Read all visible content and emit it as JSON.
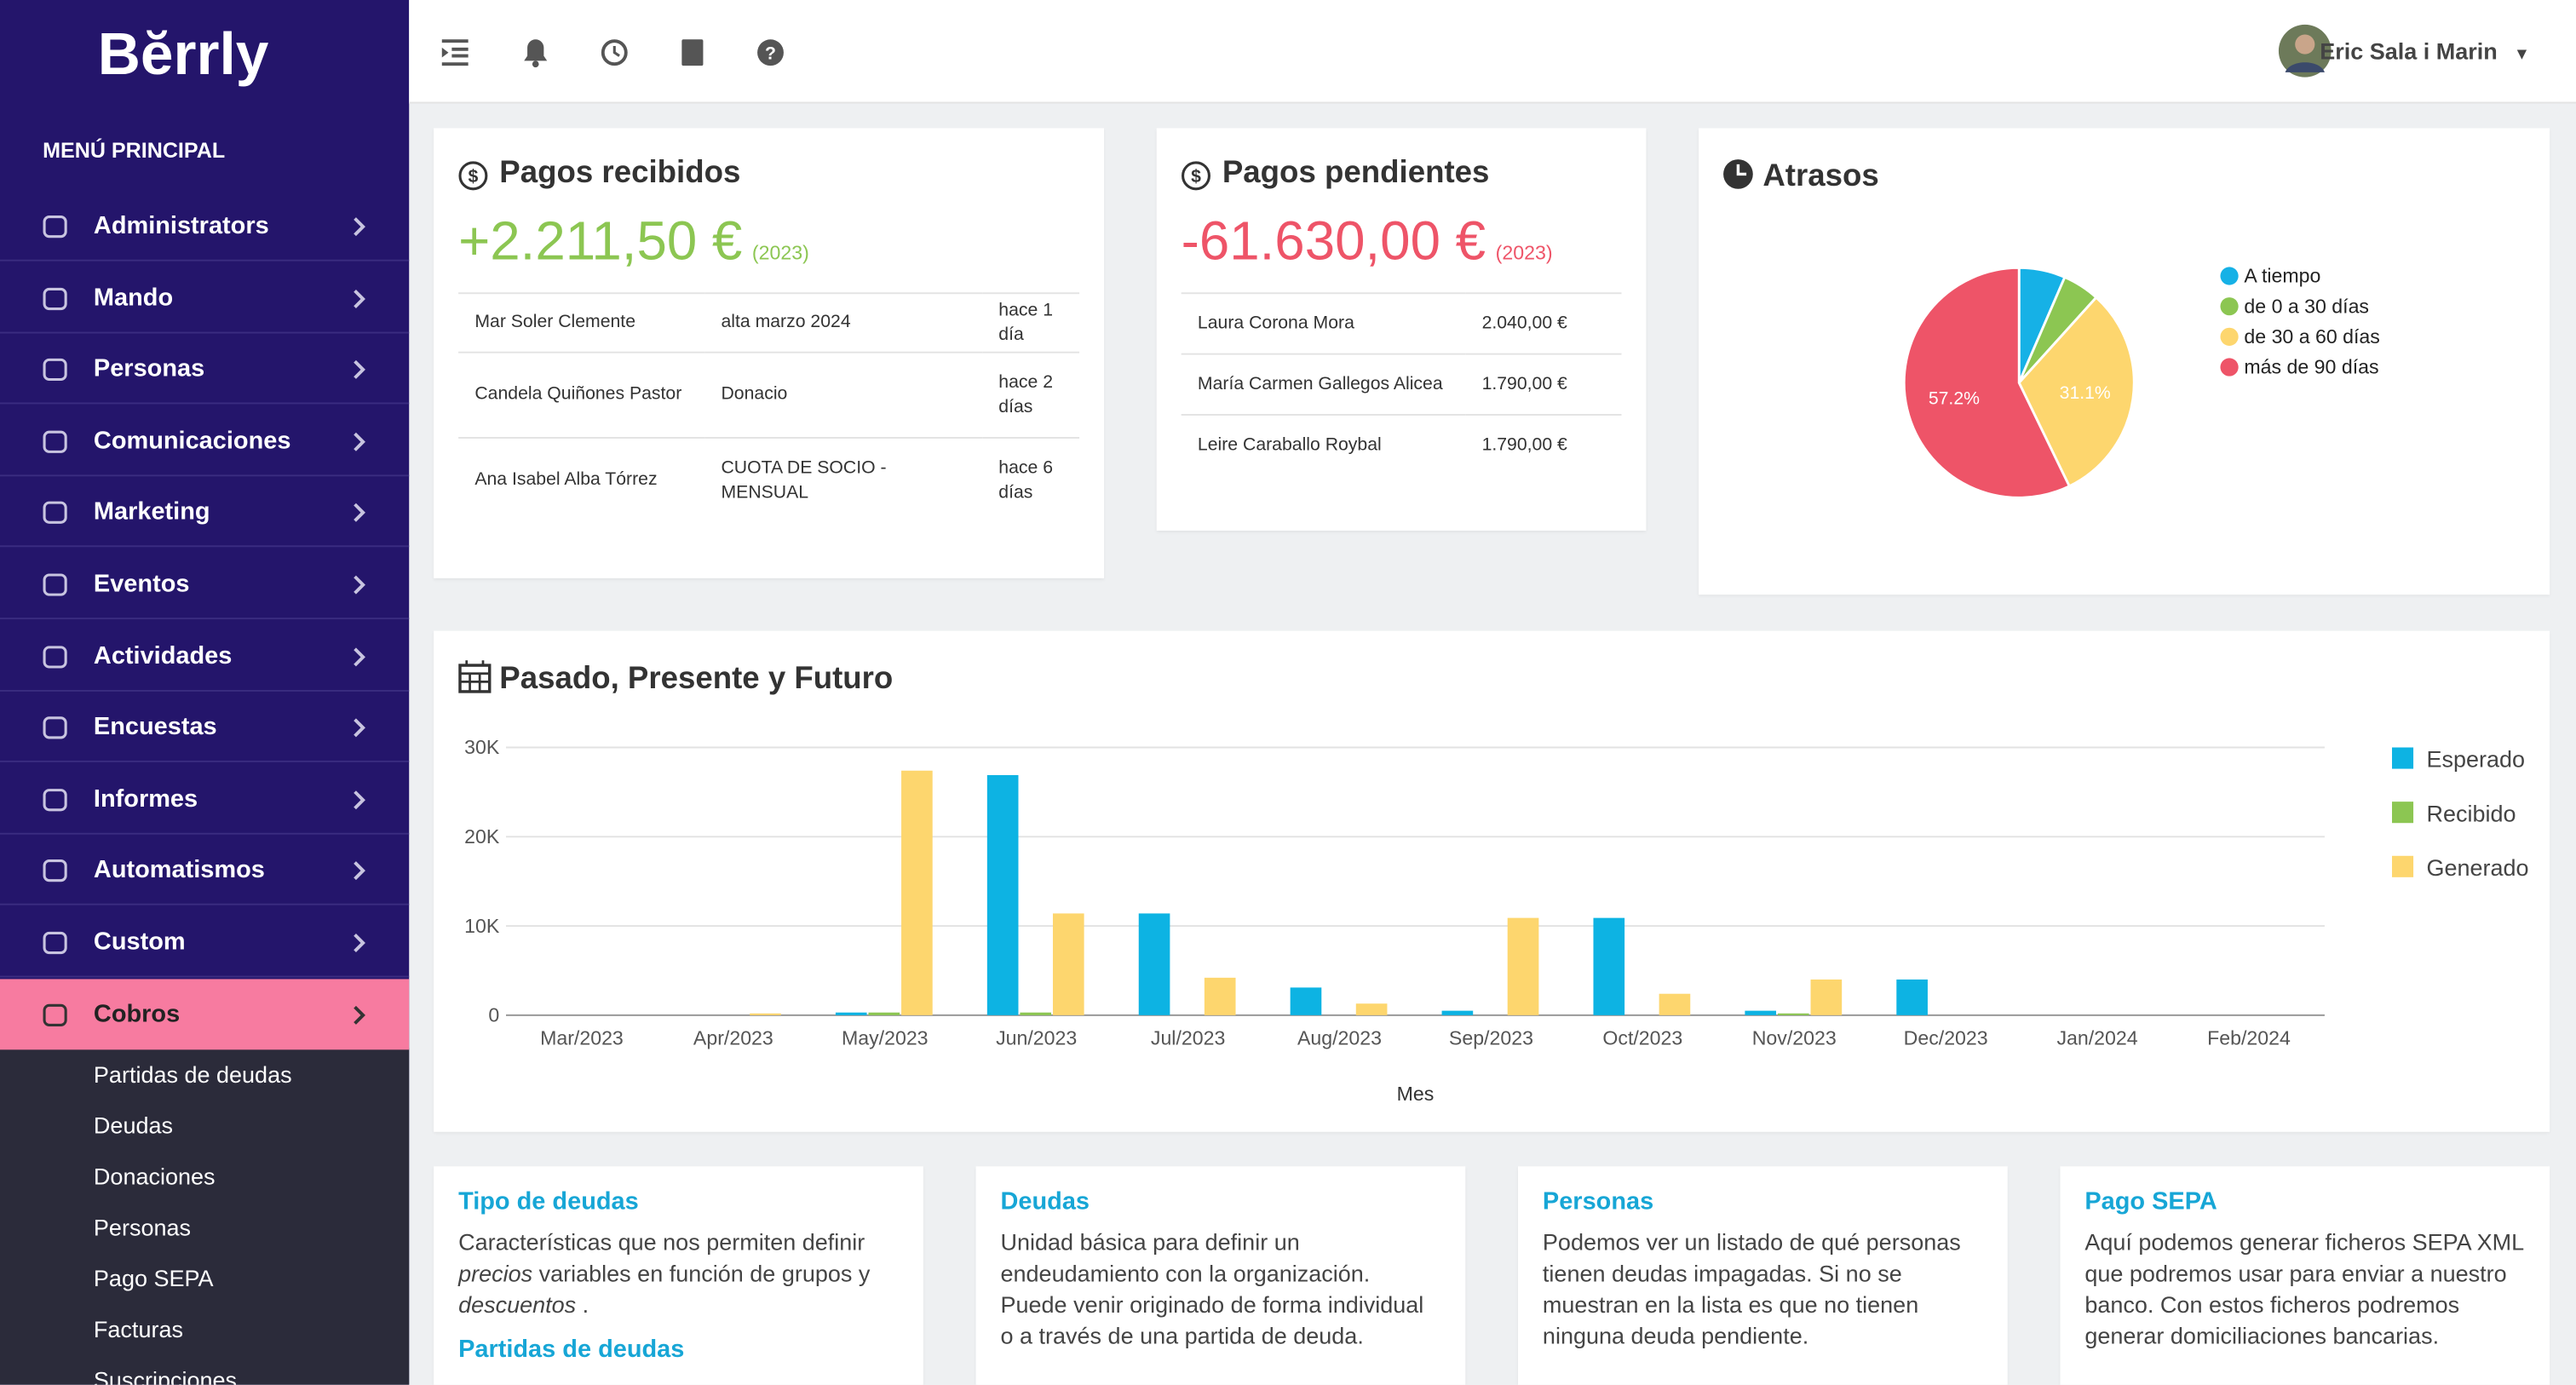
{
  "sidebar": {
    "logo": "Bĕrrly",
    "title": "MENÚ PRINCIPAL",
    "items": [
      "Administrators",
      "Mando",
      "Personas",
      "Comunicaciones",
      "Marketing",
      "Eventos",
      "Actividades",
      "Encuestas",
      "Informes",
      "Automatismos",
      "Custom",
      "Cobros"
    ],
    "subitems": [
      "Partidas de deudas",
      "Deudas",
      "Donaciones",
      "Personas",
      "Pago SEPA",
      "Facturas",
      "Suscripciones"
    ]
  },
  "header": {
    "user": "Eric Sala i Marin"
  },
  "received": {
    "title": "Pagos recibidos",
    "amount": "+2.211,50 €",
    "year": "(2023)",
    "rows": [
      [
        "Mar Soler Clemente",
        "alta marzo 2024",
        "hace 1 día"
      ],
      [
        "Candela Quiñones Pastor",
        "Donacio",
        "hace 2 días"
      ],
      [
        "Ana Isabel Alba Tórrez",
        "CUOTA DE SOCIO - MENSUAL",
        "hace 6 días"
      ]
    ]
  },
  "pending": {
    "title": "Pagos pendientes",
    "amount": "-61.630,00 €",
    "year": "(2023)",
    "rows": [
      [
        "Laura Corona Mora",
        "2.040,00 €"
      ],
      [
        "María Carmen Gallegos Alicea",
        "1.790,00 €"
      ],
      [
        "Leire Caraballo Roybal",
        "1.790,00 €"
      ]
    ]
  },
  "chart_data": [
    {
      "type": "pie",
      "title": "Atrasos",
      "categories": [
        "A tiempo",
        "de 0 a 30 días",
        "de 30 a 60 días",
        "más de 90 días"
      ],
      "values": [
        6.5,
        5.2,
        31.1,
        57.2
      ],
      "value_labels": [
        null,
        null,
        "31.1%",
        "57.2%"
      ],
      "colors": [
        "#16b1e6",
        "#8cc652",
        "#fdd66e",
        "#ee5468"
      ],
      "legend": "right"
    },
    {
      "type": "bar",
      "title": "Pasado, Presente y Futuro",
      "x_label": "Mes",
      "categories": [
        "Mar/2023",
        "Apr/2023",
        "May/2023",
        "Jun/2023",
        "Jul/2023",
        "Aug/2023",
        "Sep/2023",
        "Oct/2023",
        "Nov/2023",
        "Dec/2023",
        "Jan/2024",
        "Feb/2024"
      ],
      "series": [
        {
          "name": "Esperado",
          "color": "#0db3e3",
          "values": [
            0,
            0,
            300,
            26900,
            11400,
            3100,
            500,
            10900,
            500,
            4000,
            0,
            0
          ]
        },
        {
          "name": "Recibido",
          "color": "#8cc652",
          "values": [
            0,
            0,
            300,
            300,
            0,
            0,
            0,
            0,
            200,
            0,
            0,
            0
          ]
        },
        {
          "name": "Generado",
          "color": "#fdd66e",
          "values": [
            0,
            200,
            27400,
            11400,
            4200,
            1300,
            10900,
            2400,
            4000,
            0,
            0,
            0
          ]
        }
      ],
      "ylim": [
        0,
        30000
      ],
      "yticks": [
        0,
        {
          "value": 10000,
          "label": "10K"
        },
        {
          "value": 20000,
          "label": "20K"
        },
        {
          "value": 30000,
          "label": "30K"
        }
      ],
      "grid": true,
      "legend": "right"
    }
  ],
  "info_cards": [
    {
      "title": "Tipo de deudas",
      "text": [
        "Características que nos permiten definir ",
        "precios",
        " variables en función de grupos y ",
        "descuentos",
        " ."
      ],
      "subtitle": "Partidas de deudas"
    },
    {
      "title": "Deudas",
      "text": [
        "Unidad básica para definir un endeudamiento con la organización. Puede venir originado de forma individual o a través de una partida de deuda."
      ]
    },
    {
      "title": "Personas",
      "text": [
        "Podemos ver un listado de qué personas tienen deudas impagadas. Si no se muestran en la lista es que no tienen ninguna deuda pendiente."
      ]
    },
    {
      "title": "Pago SEPA",
      "text": [
        "Aquí podemos generar ficheros SEPA XML que podremos usar para enviar a nuestro banco. Con estos ficheros podremos generar domiciliaciones bancarias."
      ]
    }
  ]
}
